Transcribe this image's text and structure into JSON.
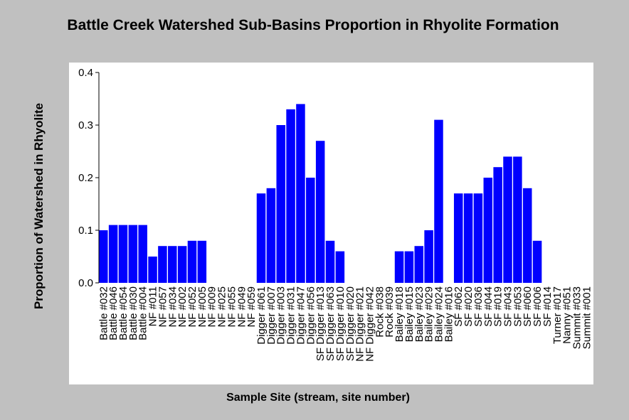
{
  "chart_data": {
    "type": "bar",
    "title": "Battle Creek Watershed Sub-Basins Proportion in Rhyolite Formation",
    "xlabel": "Sample Site (stream, site number)",
    "ylabel": "Proportion of Watershed in Rhyolite",
    "ylim": [
      0,
      0.4
    ],
    "yticks": [
      "0.0",
      "0.1",
      "0.2",
      "0.3",
      "0.4"
    ],
    "grid": false,
    "bar_color": "#0000ff",
    "categories": [
      "Battle #032",
      "Battle #046",
      "Battle #054",
      "Battle #030",
      "Battle #004",
      "NF #011",
      "NF #057",
      "NF #034",
      "NF #002",
      "NF #052",
      "NF #005",
      "NF #009",
      "NF #025",
      "NF #055",
      "NF #049",
      "NF #059",
      "Digger #061",
      "Digger #007",
      "Digger #003",
      "Digger #031",
      "Digger #047",
      "Digger #056",
      "SF Digger #013",
      "SF Digger #063",
      "SF Digger #010",
      "SF Digger #020",
      "NF Digger #021",
      "NF Digger #042",
      "Rock #038",
      "Rock #039",
      "Bailey #018",
      "Bailey #015",
      "Bailey #023",
      "Bailey #029",
      "Bailey #024",
      "Bailey #016",
      "SF #062",
      "SF #020",
      "SF #036",
      "SF #044",
      "SF #019",
      "SF #043",
      "SF #053",
      "SF #060",
      "SF #006",
      "SF #014",
      "Turner #017",
      "Nanny #051",
      "Summit #033",
      "Summit #001"
    ],
    "values": [
      0.1,
      0.11,
      0.11,
      0.11,
      0.11,
      0.05,
      0.07,
      0.07,
      0.07,
      0.08,
      0.08,
      0.0,
      0.0,
      0.0,
      0.0,
      0.0,
      0.17,
      0.18,
      0.3,
      0.33,
      0.34,
      0.2,
      0.27,
      0.08,
      0.06,
      0.0,
      0.0,
      0.0,
      0.0,
      0.0,
      0.06,
      0.06,
      0.07,
      0.1,
      0.31,
      0.0,
      0.17,
      0.17,
      0.17,
      0.2,
      0.22,
      0.24,
      0.24,
      0.18,
      0.08,
      0.0,
      0.0,
      0.0,
      0.0,
      0.0
    ]
  }
}
